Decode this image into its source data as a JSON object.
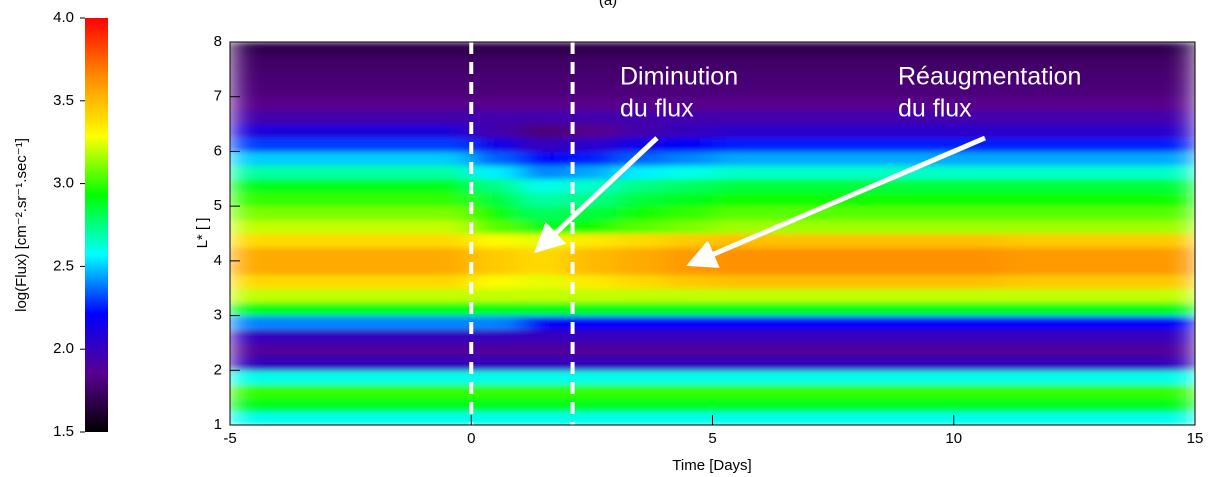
{
  "chart_data": {
    "type": "heatmap",
    "title": "(a)",
    "xlabel": "Time [Days]",
    "ylabel": "L* [ ]",
    "colorbar_label": "log(Flux) [cm⁻².sr⁻¹.sec⁻¹]",
    "xlim": [
      -5,
      15
    ],
    "xticks": [
      -5,
      0,
      5,
      10,
      15
    ],
    "ylim": [
      1,
      8
    ],
    "yticks": [
      1,
      2,
      3,
      4,
      5,
      6,
      7,
      8
    ],
    "clim": [
      1.5,
      4.0
    ],
    "cticks": [
      1.5,
      {
        "value": 2,
        "label": "2.0"
      },
      2.5,
      {
        "value": 3,
        "label": "3.0"
      },
      3.5,
      {
        "value": 4,
        "label": "4.0"
      }
    ],
    "colorscale": [
      "#000000",
      "#5a0090",
      "#0000ff",
      "#00ffff",
      "#00ff00",
      "#ffff00",
      "#ff8c00",
      "#ff0000"
    ],
    "xbins": [
      -5,
      -4,
      -3,
      -2,
      -1,
      0,
      1,
      2,
      3,
      4,
      5,
      6,
      7,
      8,
      9,
      10,
      11,
      12,
      13,
      14,
      15
    ],
    "ybins": [
      1,
      1.25,
      1.5,
      1.75,
      2,
      2.25,
      2.5,
      2.75,
      3,
      3.25,
      3.5,
      3.75,
      4,
      4.25,
      4.5,
      4.75,
      5,
      5.25,
      5.5,
      5.75,
      6,
      6.25,
      6.5,
      6.75,
      7,
      7.25,
      7.5,
      7.75,
      8
    ],
    "values": [
      [
        2.6,
        2.6,
        2.6,
        2.6,
        2.6,
        2.6,
        2.6,
        2.6,
        2.6,
        2.6,
        2.6,
        2.6,
        2.6,
        2.6,
        2.6,
        2.6,
        2.6,
        2.6,
        2.6,
        2.6
      ],
      [
        2.9,
        2.9,
        2.9,
        2.9,
        2.9,
        2.9,
        2.9,
        2.9,
        2.9,
        2.9,
        2.9,
        2.9,
        2.9,
        2.9,
        2.9,
        2.9,
        2.9,
        2.9,
        2.9,
        2.9
      ],
      [
        3.0,
        3.0,
        3.0,
        3.0,
        3.0,
        3.0,
        3.0,
        3.0,
        3.0,
        3.0,
        3.0,
        3.0,
        3.0,
        3.0,
        3.0,
        3.0,
        3.0,
        3.0,
        3.0,
        3.0
      ],
      [
        2.6,
        2.6,
        2.6,
        2.6,
        2.6,
        2.6,
        2.6,
        2.6,
        2.6,
        2.6,
        2.6,
        2.6,
        2.6,
        2.6,
        2.6,
        2.6,
        2.6,
        2.6,
        2.6,
        2.6
      ],
      [
        2.0,
        2.0,
        2.0,
        2.0,
        2.0,
        2.0,
        2.0,
        2.0,
        2.0,
        2.0,
        2.0,
        2.0,
        2.0,
        2.0,
        2.0,
        2.0,
        2.0,
        2.0,
        2.0,
        2.0
      ],
      [
        1.9,
        1.9,
        1.9,
        1.9,
        1.9,
        1.9,
        1.9,
        1.9,
        1.9,
        1.9,
        1.9,
        1.9,
        1.9,
        1.9,
        1.9,
        1.9,
        1.9,
        1.9,
        1.9,
        1.9
      ],
      [
        2.0,
        2.0,
        2.0,
        2.0,
        2.0,
        2.0,
        2.0,
        2.0,
        2.0,
        2.0,
        2.0,
        2.0,
        2.0,
        2.0,
        2.0,
        2.0,
        2.0,
        2.0,
        2.0,
        2.0
      ],
      [
        2.4,
        2.4,
        2.4,
        2.4,
        2.4,
        2.4,
        2.2,
        2.2,
        2.2,
        2.2,
        2.2,
        2.2,
        2.2,
        2.2,
        2.2,
        2.2,
        2.2,
        2.2,
        2.2,
        2.2
      ],
      [
        2.9,
        2.9,
        2.9,
        2.9,
        2.9,
        2.9,
        2.9,
        2.9,
        2.9,
        2.9,
        2.9,
        2.9,
        2.9,
        2.9,
        2.9,
        2.9,
        2.9,
        2.9,
        2.9,
        2.9
      ],
      [
        3.2,
        3.2,
        3.2,
        3.2,
        3.2,
        3.2,
        3.2,
        3.2,
        3.2,
        3.2,
        3.2,
        3.2,
        3.2,
        3.2,
        3.2,
        3.2,
        3.2,
        3.2,
        3.2,
        3.2
      ],
      [
        3.4,
        3.4,
        3.4,
        3.4,
        3.4,
        3.3,
        3.25,
        3.35,
        3.4,
        3.45,
        3.48,
        3.48,
        3.48,
        3.48,
        3.48,
        3.48,
        3.45,
        3.45,
        3.45,
        3.45
      ],
      [
        3.55,
        3.55,
        3.55,
        3.55,
        3.55,
        3.45,
        3.4,
        3.5,
        3.55,
        3.6,
        3.63,
        3.63,
        3.63,
        3.63,
        3.63,
        3.63,
        3.6,
        3.6,
        3.6,
        3.6
      ],
      [
        3.55,
        3.55,
        3.55,
        3.55,
        3.55,
        3.45,
        3.4,
        3.5,
        3.55,
        3.6,
        3.63,
        3.63,
        3.63,
        3.63,
        3.63,
        3.63,
        3.6,
        3.6,
        3.6,
        3.6
      ],
      [
        3.4,
        3.4,
        3.4,
        3.4,
        3.4,
        3.3,
        3.25,
        3.35,
        3.4,
        3.45,
        3.48,
        3.48,
        3.48,
        3.48,
        3.48,
        3.48,
        3.45,
        3.45,
        3.45,
        3.45
      ],
      [
        3.2,
        3.2,
        3.2,
        3.2,
        3.2,
        3.05,
        2.9,
        2.95,
        3.05,
        3.1,
        3.15,
        3.15,
        3.15,
        3.15,
        3.15,
        3.15,
        3.15,
        3.15,
        3.15,
        3.15
      ],
      [
        3.1,
        3.1,
        3.1,
        3.1,
        3.1,
        2.95,
        2.8,
        2.85,
        2.95,
        3.0,
        3.05,
        3.05,
        3.05,
        3.05,
        3.05,
        3.05,
        3.05,
        3.05,
        3.05,
        3.05
      ],
      [
        3.0,
        3.0,
        3.0,
        3.0,
        3.0,
        2.85,
        2.7,
        2.75,
        2.85,
        2.9,
        2.95,
        2.95,
        2.95,
        2.95,
        2.95,
        2.95,
        2.95,
        2.95,
        2.95,
        2.95
      ],
      [
        2.9,
        2.9,
        2.9,
        2.9,
        2.9,
        2.75,
        2.6,
        2.65,
        2.75,
        2.8,
        2.85,
        2.85,
        2.85,
        2.85,
        2.85,
        2.85,
        2.85,
        2.85,
        2.85,
        2.85
      ],
      [
        2.7,
        2.7,
        2.7,
        2.7,
        2.7,
        2.55,
        2.4,
        2.45,
        2.55,
        2.6,
        2.65,
        2.65,
        2.65,
        2.65,
        2.65,
        2.65,
        2.65,
        2.65,
        2.65,
        2.65
      ],
      [
        2.5,
        2.5,
        2.5,
        2.5,
        2.5,
        2.35,
        2.2,
        2.25,
        2.35,
        2.4,
        2.45,
        2.45,
        2.45,
        2.45,
        2.45,
        2.45,
        2.45,
        2.45,
        2.45,
        2.45
      ],
      [
        2.3,
        2.3,
        2.3,
        2.3,
        2.3,
        2.15,
        2.0,
        2.05,
        2.15,
        2.2,
        2.25,
        2.25,
        2.25,
        2.25,
        2.25,
        2.25,
        2.25,
        2.25,
        2.25,
        2.25
      ],
      [
        2.1,
        2.1,
        2.1,
        2.1,
        2.1,
        1.95,
        1.8,
        1.85,
        1.95,
        2.0,
        2.05,
        2.05,
        2.05,
        2.05,
        2.05,
        2.05,
        2.05,
        2.05,
        2.05,
        2.05
      ],
      [
        1.95,
        1.95,
        1.95,
        1.95,
        1.95,
        1.95,
        1.95,
        1.95,
        1.95,
        1.95,
        1.95,
        1.95,
        1.95,
        1.95,
        1.95,
        1.95,
        1.95,
        1.95,
        1.95,
        1.95
      ],
      [
        1.85,
        1.85,
        1.85,
        1.85,
        1.85,
        1.85,
        1.85,
        1.85,
        1.85,
        1.85,
        1.85,
        1.85,
        1.85,
        1.85,
        1.85,
        1.85,
        1.85,
        1.85,
        1.85,
        1.85
      ],
      [
        1.8,
        1.8,
        1.8,
        1.8,
        1.8,
        1.8,
        1.8,
        1.8,
        1.8,
        1.8,
        1.8,
        1.8,
        1.8,
        1.8,
        1.8,
        1.8,
        1.8,
        1.8,
        1.8,
        1.8
      ],
      [
        1.78,
        1.78,
        1.78,
        1.78,
        1.78,
        1.78,
        1.78,
        1.78,
        1.78,
        1.78,
        1.78,
        1.78,
        1.78,
        1.78,
        1.78,
        1.78,
        1.78,
        1.78,
        1.78,
        1.78
      ],
      [
        1.75,
        1.75,
        1.75,
        1.75,
        1.75,
        1.75,
        1.75,
        1.75,
        1.75,
        1.75,
        1.75,
        1.75,
        1.75,
        1.75,
        1.75,
        1.75,
        1.75,
        1.75,
        1.75,
        1.75
      ],
      [
        1.7,
        1.7,
        1.7,
        1.7,
        1.7,
        1.7,
        1.7,
        1.7,
        1.7,
        1.7,
        1.7,
        1.7,
        1.7,
        1.7,
        1.7,
        1.7,
        1.7,
        1.7,
        1.7,
        1.7
      ]
    ],
    "vlines": [
      0,
      2.1
    ],
    "annotations": [
      [
        "Diminution",
        "du flux"
      ],
      [
        "Réaugmentation",
        "du flux"
      ]
    ]
  }
}
